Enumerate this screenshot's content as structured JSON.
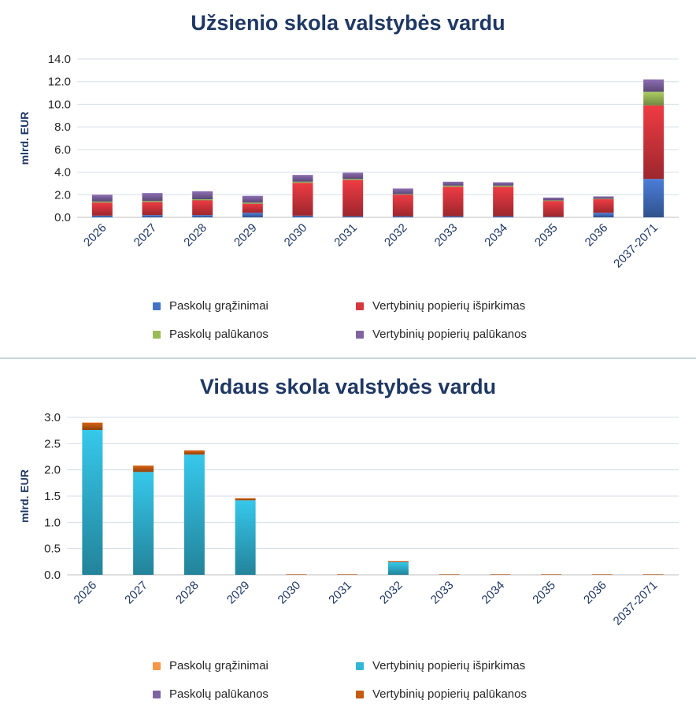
{
  "chart_data": [
    {
      "type": "bar",
      "stacked": true,
      "title": "Užsienio skola valstybės vardu",
      "ylabel": "mlrd. EUR",
      "ylim": [
        0,
        14
      ],
      "yticks": [
        "0.0",
        "2.0",
        "4.0",
        "6.0",
        "8.0",
        "10.0",
        "12.0",
        "14.0"
      ],
      "grid": true,
      "legend_position": "bottom",
      "categories": [
        "2026",
        "2027",
        "2028",
        "2029",
        "2030",
        "2031",
        "2032",
        "2033",
        "2034",
        "2035",
        "2036",
        "2037-2071"
      ],
      "series": [
        {
          "name": "Paskolų grąžinimai",
          "color": "#4472c4",
          "values": [
            0.15,
            0.2,
            0.2,
            0.4,
            0.15,
            0.1,
            0.1,
            0.1,
            0.1,
            0.05,
            0.4,
            3.4
          ]
        },
        {
          "name": "Vertybinių popierių išpirkimas",
          "color": "#d9363e",
          "values": [
            1.15,
            1.15,
            1.3,
            0.8,
            2.9,
            3.2,
            1.9,
            2.6,
            2.6,
            1.4,
            1.2,
            6.5
          ]
        },
        {
          "name": "Paskolų palūkanos",
          "color": "#9bbb59",
          "values": [
            0.1,
            0.1,
            0.1,
            0.1,
            0.1,
            0.1,
            0.05,
            0.1,
            0.1,
            0.05,
            0.05,
            1.2
          ]
        },
        {
          "name": "Vertybinių popierių palūkanos",
          "color": "#8064a2",
          "values": [
            0.6,
            0.7,
            0.7,
            0.6,
            0.6,
            0.55,
            0.5,
            0.35,
            0.3,
            0.25,
            0.2,
            1.1
          ]
        }
      ]
    },
    {
      "type": "bar",
      "stacked": true,
      "title": "Vidaus skola valstybės vardu",
      "ylabel": "mlrd. EUR",
      "ylim": [
        0,
        3
      ],
      "yticks": [
        "0.0",
        "0.5",
        "1.0",
        "1.5",
        "2.0",
        "2.5",
        "3.0"
      ],
      "grid": true,
      "legend_position": "bottom",
      "categories": [
        "2026",
        "2027",
        "2028",
        "2029",
        "2030",
        "2031",
        "2032",
        "2033",
        "2034",
        "2035",
        "2036",
        "2037-2071"
      ],
      "series": [
        {
          "name": "Paskolų grąžinimai",
          "color": "#f79646",
          "values": [
            0,
            0,
            0,
            0,
            0,
            0,
            0,
            0,
            0,
            0,
            0,
            0
          ]
        },
        {
          "name": "Vertybinių popierių išpirkimas",
          "color": "#31b6d6",
          "values": [
            2.76,
            1.96,
            2.29,
            1.42,
            0,
            0,
            0.24,
            0,
            0,
            0,
            0,
            0
          ]
        },
        {
          "name": "Paskolų palūkanos",
          "color": "#8064a2",
          "values": [
            0,
            0,
            0,
            0,
            0,
            0,
            0,
            0,
            0,
            0,
            0,
            0
          ]
        },
        {
          "name": "Vertybinių popierių palūkanos",
          "color": "#c55a11",
          "values": [
            0.14,
            0.12,
            0.08,
            0.04,
            0.01,
            0.01,
            0.02,
            0.01,
            0.01,
            0.01,
            0.01,
            0.01
          ]
        }
      ]
    }
  ]
}
